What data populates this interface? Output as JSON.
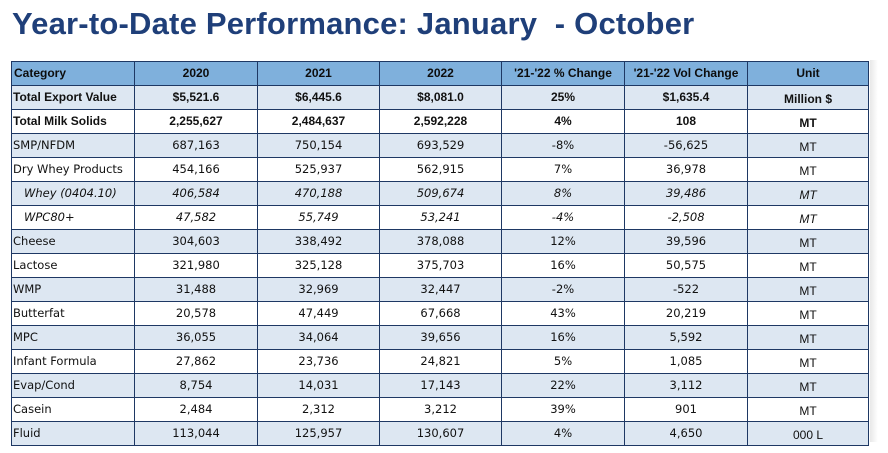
{
  "title": "Year-to-Date Performance: January  - October",
  "table": {
    "headers": [
      "Category",
      "2020",
      "2021",
      "2022",
      "'21-'22 % Change",
      "'21-'22 Vol Change",
      "Unit"
    ],
    "rows": [
      {
        "category": "Total Export Value",
        "y2020": "$5,521.6",
        "y2021": "$6,445.6",
        "y2022": "$8,081.0",
        "pct": "25%",
        "vol": "$1,635.4",
        "unit": "Million $",
        "style": "bold",
        "indent": false
      },
      {
        "category": "Total Milk Solids",
        "y2020": "2,255,627",
        "y2021": "2,484,637",
        "y2022": "2,592,228",
        "pct": "4%",
        "vol": "108",
        "unit": "MT",
        "style": "bold",
        "indent": false
      },
      {
        "category": "SMP/NFDM",
        "y2020": "687,163",
        "y2021": "750,154",
        "y2022": "693,529",
        "pct": "-8%",
        "vol": "-56,625",
        "unit": "MT",
        "style": "normal",
        "indent": false
      },
      {
        "category": "Dry Whey Products",
        "y2020": "454,166",
        "y2021": "525,937",
        "y2022": "562,915",
        "pct": "7%",
        "vol": "36,978",
        "unit": "MT",
        "style": "normal",
        "indent": false
      },
      {
        "category": "Whey (0404.10)",
        "y2020": "406,584",
        "y2021": "470,188",
        "y2022": "509,674",
        "pct": "8%",
        "vol": "39,486",
        "unit": "MT",
        "style": "italic",
        "indent": true
      },
      {
        "category": "WPC80+",
        "y2020": "47,582",
        "y2021": "55,749",
        "y2022": "53,241",
        "pct": "-4%",
        "vol": "-2,508",
        "unit": "MT",
        "style": "italic",
        "indent": true
      },
      {
        "category": "Cheese",
        "y2020": "304,603",
        "y2021": "338,492",
        "y2022": "378,088",
        "pct": "12%",
        "vol": "39,596",
        "unit": "MT",
        "style": "normal",
        "indent": false
      },
      {
        "category": "Lactose",
        "y2020": "321,980",
        "y2021": "325,128",
        "y2022": "375,703",
        "pct": "16%",
        "vol": "50,575",
        "unit": "MT",
        "style": "normal",
        "indent": false
      },
      {
        "category": "WMP",
        "y2020": "31,488",
        "y2021": "32,969",
        "y2022": "32,447",
        "pct": "-2%",
        "vol": "-522",
        "unit": "MT",
        "style": "normal",
        "indent": false
      },
      {
        "category": "Butterfat",
        "y2020": "20,578",
        "y2021": "47,449",
        "y2022": "67,668",
        "pct": "43%",
        "vol": "20,219",
        "unit": "MT",
        "style": "normal",
        "indent": false
      },
      {
        "category": "MPC",
        "y2020": "36,055",
        "y2021": "34,064",
        "y2022": "39,656",
        "pct": "16%",
        "vol": "5,592",
        "unit": "MT",
        "style": "normal",
        "indent": false
      },
      {
        "category": "Infant Formula",
        "y2020": "27,862",
        "y2021": "23,736",
        "y2022": "24,821",
        "pct": "5%",
        "vol": "1,085",
        "unit": "MT",
        "style": "normal",
        "indent": false
      },
      {
        "category": "Evap/Cond",
        "y2020": "8,754",
        "y2021": "14,031",
        "y2022": "17,143",
        "pct": "22%",
        "vol": "3,112",
        "unit": "MT",
        "style": "normal",
        "indent": false
      },
      {
        "category": "Casein",
        "y2020": "2,484",
        "y2021": "2,312",
        "y2022": "3,212",
        "pct": "39%",
        "vol": "901",
        "unit": "MT",
        "style": "normal",
        "indent": false
      },
      {
        "category": "Fluid",
        "y2020": "113,044",
        "y2021": "125,957",
        "y2022": "130,607",
        "pct": "4%",
        "vol": "4,650",
        "unit": "000 L",
        "style": "normal",
        "indent": false
      }
    ]
  },
  "colors": {
    "title": "#1f3f79",
    "header_fill": "#7fb0dc",
    "shaded_row": "#dde7f2",
    "border": "#1e3864"
  }
}
